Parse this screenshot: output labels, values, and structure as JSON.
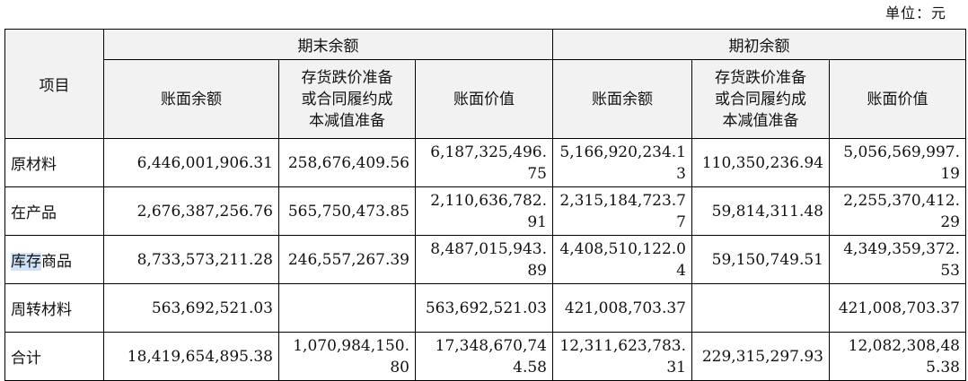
{
  "unit_label": "单位：元",
  "header": {
    "item_col": "项目",
    "group_end": "期末余额",
    "group_begin": "期初余额",
    "col_book_balance": "账面余额",
    "col_provision": "存货跌价准备或合同履约成本减值准备",
    "col_book_value": "账面价值"
  },
  "rows": [
    {
      "item_highlight": "",
      "item_rest": "原材料",
      "end_balance": "6,446,001,906.31",
      "end_provision": "258,676,409.56",
      "end_value": "6,187,325,496.75",
      "begin_balance": "5,166,920,234.13",
      "begin_provision": "110,350,236.94",
      "begin_value": "5,056,569,997.19"
    },
    {
      "item_highlight": "",
      "item_rest": "在产品",
      "end_balance": "2,676,387,256.76",
      "end_provision": "565,750,473.85",
      "end_value": "2,110,636,782.91",
      "begin_balance": "2,315,184,723.77",
      "begin_provision": "59,814,311.48",
      "begin_value": "2,255,370,412.29"
    },
    {
      "item_highlight": "库存",
      "item_rest": "商品",
      "end_balance": "8,733,573,211.28",
      "end_provision": "246,557,267.39",
      "end_value": "8,487,015,943.89",
      "begin_balance": "4,408,510,122.04",
      "begin_provision": "59,150,749.51",
      "begin_value": "4,349,359,372.53"
    },
    {
      "item_highlight": "",
      "item_rest": "周转材料",
      "end_balance": "563,692,521.03",
      "end_provision": "",
      "end_value": "563,692,521.03",
      "begin_balance": "421,008,703.37",
      "begin_provision": "",
      "begin_value": "421,008,703.37"
    },
    {
      "item_highlight": "",
      "item_rest": "合计",
      "end_balance": "18,419,654,895.38",
      "end_provision": "1,070,984,150.80",
      "end_value": "17,348,670,744.58",
      "begin_balance": "12,311,623,783.31",
      "begin_provision": "229,315,297.93",
      "begin_value": "12,082,308,485.38"
    }
  ]
}
